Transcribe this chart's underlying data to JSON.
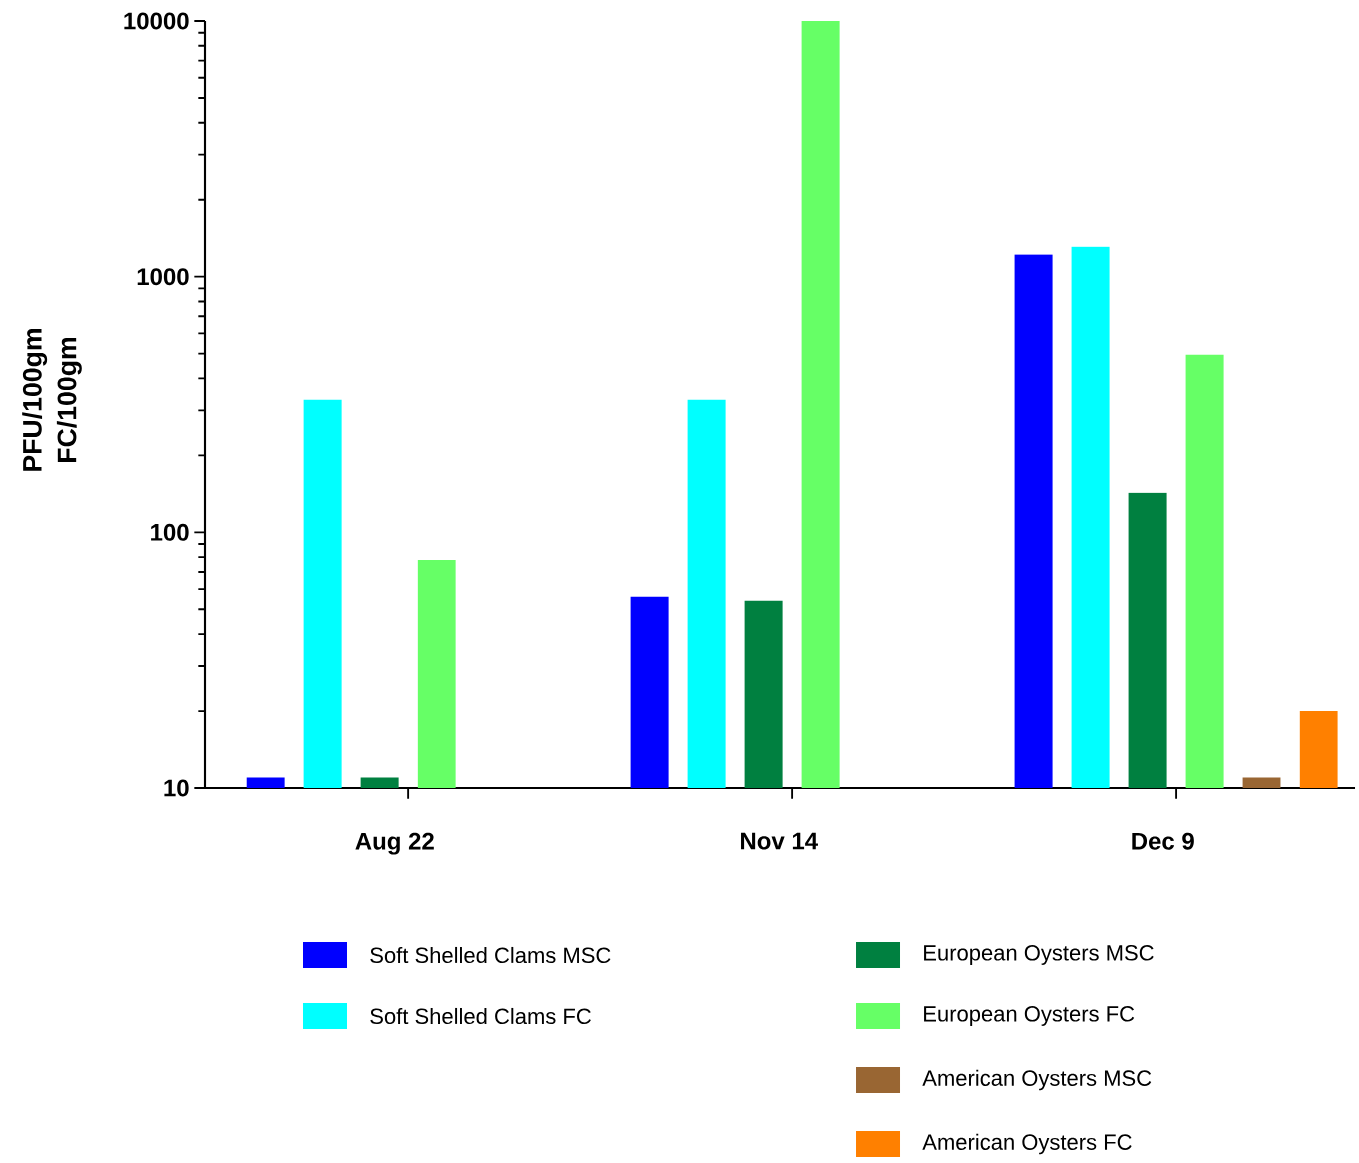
{
  "chart_data": {
    "type": "bar",
    "ylabel": "PFU/100gm FC/100gm",
    "categories": [
      "Aug 22",
      "Nov 14",
      "Dec 9"
    ],
    "series": [
      {
        "name": "Soft Shelled Clams MSC",
        "color": "#0000ff",
        "values": [
          11,
          56,
          1220
        ]
      },
      {
        "name": "Soft Shelled Clams FC",
        "color": "#00ffff",
        "values": [
          330,
          330,
          1310
        ]
      },
      {
        "name": "European Oysters MSC",
        "color": "#008040",
        "values": [
          11,
          54,
          143
        ]
      },
      {
        "name": "European Oysters FC",
        "color": "#66ff66",
        "values": [
          78,
          10000,
          495
        ]
      },
      {
        "name": "American Oysters MSC",
        "color": "#996633",
        "values": [
          null,
          null,
          11
        ]
      },
      {
        "name": "American Oysters FC",
        "color": "#ff8000",
        "values": [
          null,
          null,
          20
        ]
      }
    ],
    "log": true,
    "ylim": [
      10,
      10000
    ],
    "yticks": [
      10,
      100,
      1000,
      10000
    ],
    "legend": "bottom"
  }
}
